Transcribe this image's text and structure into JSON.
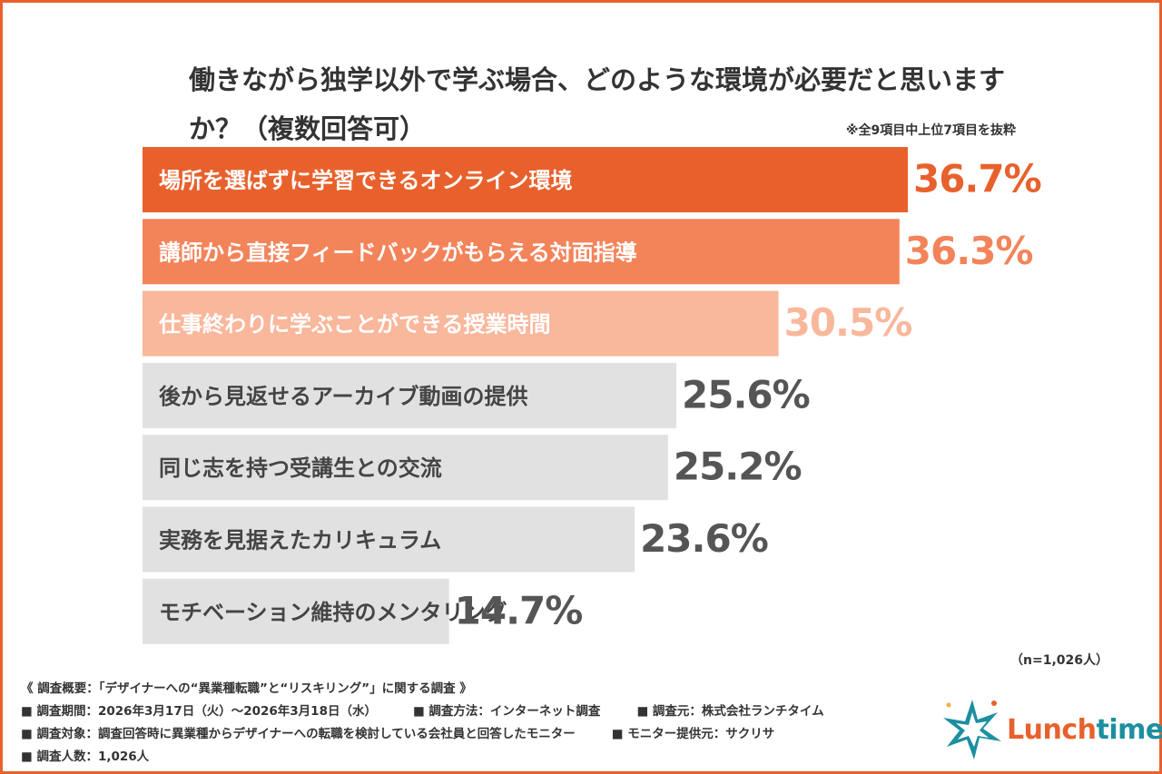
{
  "chart_data": {
    "type": "hbar",
    "title": "働きながら独学以外で学ぶ場合、どのような環境が必要だと思いますか？（複数回答可）",
    "note": "※全9項目中上位7項目を抜粋",
    "sample_size": "（n=1,026人）",
    "categories": [
      "場所を選ばずに学習できるオンライン環境",
      "講師から直接フィードバックがもらえる対面指導",
      "仕事終わりに学ぶことができる授業時間",
      "後から見返せるアーカイブ動画の提供",
      "同じ志を持つ受講生との交流",
      "実務を見据えたカリキュラム",
      "モチベーション維持のメンタリング"
    ],
    "values": [
      36.7,
      36.3,
      30.5,
      25.6,
      25.2,
      23.6,
      14.7
    ],
    "value_labels": [
      "36.7%",
      "36.3%",
      "30.5%",
      "25.6%",
      "25.2%",
      "23.6%",
      "14.7%"
    ],
    "colors": [
      "#e8612c",
      "#f3845a",
      "#f9b79c",
      "#e1e1e1",
      "#e1e1e1",
      "#e1e1e1",
      "#e1e1e1"
    ],
    "label_colors": [
      "#e8612c",
      "#f3845a",
      "#f9b79c",
      "#555555",
      "#555555",
      "#555555",
      "#555555"
    ],
    "category_colors": [
      "#ffffff",
      "#ffffff",
      "#ffffff",
      "#444444",
      "#444444",
      "#444444",
      "#444444"
    ]
  },
  "footer": {
    "heading": "《 調査概要：「デザイナーへの“異業種転職”と“リスキリング”」に関する調査 》",
    "items": [
      "■ 調査期間：2026年3月17日（火）～2026年3月18日（水）",
      "■ 調査方法：インターネット調査",
      "■ 調査元：株式会社ランチタイム",
      "■ 調査対象：調査回答時に異業種からデザイナーへの転職を検討している会社員と回答したモニター",
      "■ モニター提供元：サクリサ",
      "■ 調査人数：1,026人"
    ]
  },
  "logo": [
    "Lunch",
    "time"
  ]
}
